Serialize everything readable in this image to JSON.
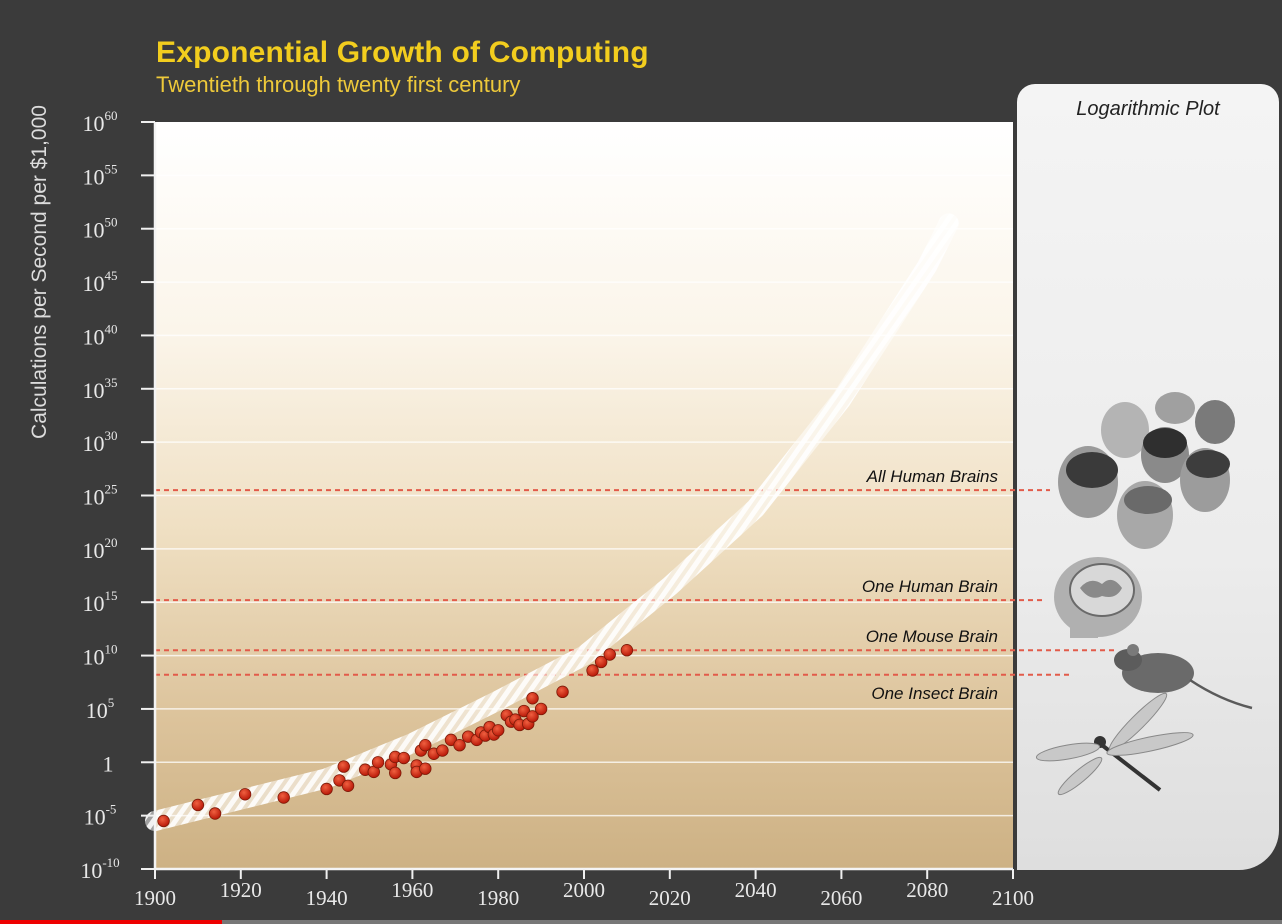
{
  "header": {
    "title": "Exponential Growth of Computing",
    "subtitle": "Twentieth through twenty first century"
  },
  "side_panel": {
    "label": "Logarithmic Plot",
    "icons": [
      "human-faces-icon",
      "brain-head-icon",
      "mouse-icon",
      "dragonfly-icon"
    ]
  },
  "colors": {
    "title": "#f2cd1e",
    "background": "#3b3b3b",
    "data_points": "#d42a12",
    "threshold_lines": "#e25b4a",
    "trend_band": "#ffffff"
  },
  "chart_data": {
    "type": "scatter",
    "title": "Exponential Growth of Computing",
    "subtitle": "Twentieth through twenty first century",
    "xlabel": "",
    "ylabel": "Calculations per Second per $1,000",
    "x_scale": "linear",
    "y_scale": "log",
    "xlim": [
      1900,
      2100
    ],
    "ylim_exponent": [
      -10,
      60
    ],
    "x_ticks": [
      1900,
      1920,
      1940,
      1960,
      1980,
      2000,
      2020,
      2040,
      2060,
      2080,
      2100
    ],
    "y_ticks": [
      {
        "exp": -10,
        "base": "10",
        "sup": "-10"
      },
      {
        "exp": -5,
        "base": "10",
        "sup": "-5"
      },
      {
        "exp": 0,
        "base": "1",
        "sup": ""
      },
      {
        "exp": 5,
        "base": "10",
        "sup": "5"
      },
      {
        "exp": 10,
        "base": "10",
        "sup": "10"
      },
      {
        "exp": 15,
        "base": "10",
        "sup": "15"
      },
      {
        "exp": 20,
        "base": "10",
        "sup": "20"
      },
      {
        "exp": 25,
        "base": "10",
        "sup": "25"
      },
      {
        "exp": 30,
        "base": "10",
        "sup": "30"
      },
      {
        "exp": 35,
        "base": "10",
        "sup": "35"
      },
      {
        "exp": 40,
        "base": "10",
        "sup": "40"
      },
      {
        "exp": 45,
        "base": "10",
        "sup": "45"
      },
      {
        "exp": 50,
        "base": "10",
        "sup": "50"
      },
      {
        "exp": 55,
        "base": "10",
        "sup": "55"
      },
      {
        "exp": 60,
        "base": "10",
        "sup": "60"
      }
    ],
    "grid": "horizontal",
    "thresholds": [
      {
        "label": "All Human Brains",
        "log10_value": 25.5
      },
      {
        "label": "One Human Brain",
        "log10_value": 15.2
      },
      {
        "label": "One Mouse Brain",
        "log10_value": 10.5
      },
      {
        "label": "One Insect Brain",
        "log10_value": 8.2
      }
    ],
    "trend": {
      "x": [
        1900,
        1920,
        1940,
        1960,
        1980,
        2000,
        2020,
        2040,
        2060,
        2080,
        2085
      ],
      "log10_y": [
        -5.5,
        -3.5,
        -1.5,
        1.8,
        5.8,
        10,
        16.5,
        23.8,
        34,
        46.5,
        50.5
      ]
    },
    "points": [
      {
        "x": 1902,
        "log10_y": -5.5
      },
      {
        "x": 1910,
        "log10_y": -4.0
      },
      {
        "x": 1914,
        "log10_y": -4.8
      },
      {
        "x": 1921,
        "log10_y": -3.0
      },
      {
        "x": 1930,
        "log10_y": -3.3
      },
      {
        "x": 1940,
        "log10_y": -2.5
      },
      {
        "x": 1943,
        "log10_y": -1.7
      },
      {
        "x": 1944,
        "log10_y": -0.4
      },
      {
        "x": 1945,
        "log10_y": -2.2
      },
      {
        "x": 1949,
        "log10_y": -0.7
      },
      {
        "x": 1951,
        "log10_y": -0.9
      },
      {
        "x": 1952,
        "log10_y": 0.0
      },
      {
        "x": 1955,
        "log10_y": -0.2
      },
      {
        "x": 1956,
        "log10_y": 0.5
      },
      {
        "x": 1956,
        "log10_y": -1.0
      },
      {
        "x": 1958,
        "log10_y": 0.4
      },
      {
        "x": 1961,
        "log10_y": -0.3
      },
      {
        "x": 1961,
        "log10_y": -0.9
      },
      {
        "x": 1962,
        "log10_y": 1.1
      },
      {
        "x": 1963,
        "log10_y": -0.6
      },
      {
        "x": 1963,
        "log10_y": 1.6
      },
      {
        "x": 1965,
        "log10_y": 0.8
      },
      {
        "x": 1967,
        "log10_y": 1.1
      },
      {
        "x": 1969,
        "log10_y": 2.1
      },
      {
        "x": 1971,
        "log10_y": 1.6
      },
      {
        "x": 1973,
        "log10_y": 2.4
      },
      {
        "x": 1975,
        "log10_y": 2.1
      },
      {
        "x": 1976,
        "log10_y": 2.8
      },
      {
        "x": 1977,
        "log10_y": 2.5
      },
      {
        "x": 1978,
        "log10_y": 3.3
      },
      {
        "x": 1979,
        "log10_y": 2.6
      },
      {
        "x": 1980,
        "log10_y": 3.0
      },
      {
        "x": 1982,
        "log10_y": 4.4
      },
      {
        "x": 1983,
        "log10_y": 3.8
      },
      {
        "x": 1984,
        "log10_y": 4.0
      },
      {
        "x": 1985,
        "log10_y": 3.5
      },
      {
        "x": 1986,
        "log10_y": 4.8
      },
      {
        "x": 1987,
        "log10_y": 3.6
      },
      {
        "x": 1988,
        "log10_y": 6.0
      },
      {
        "x": 1988,
        "log10_y": 4.3
      },
      {
        "x": 1990,
        "log10_y": 5.0
      },
      {
        "x": 1995,
        "log10_y": 6.6
      },
      {
        "x": 2002,
        "log10_y": 8.6
      },
      {
        "x": 2004,
        "log10_y": 9.4
      },
      {
        "x": 2006,
        "log10_y": 10.1
      },
      {
        "x": 2010,
        "log10_y": 10.5
      }
    ]
  }
}
